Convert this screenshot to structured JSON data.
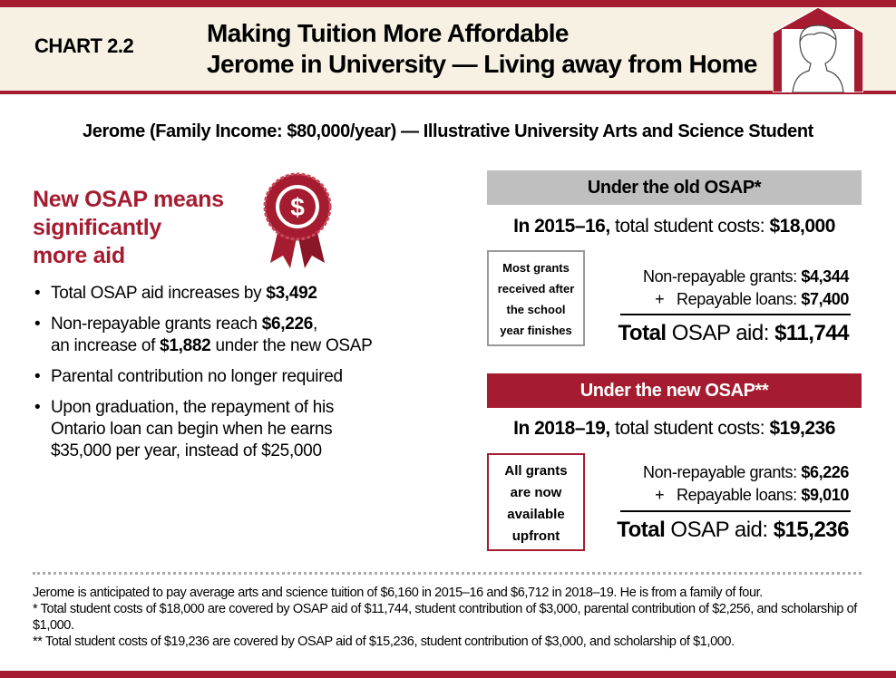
{
  "header": {
    "chart_label": "CHART 2.2",
    "title_line1": "Making Tuition More Affordable",
    "title_line2": "Jerome in University — Living away from Home"
  },
  "subtitle": "Jerome (Family Income: $80,000/year) — Illustrative University Arts and Science Student",
  "lead": {
    "line1": "New OSAP means",
    "line2": "significantly",
    "line3": "more aid"
  },
  "icons": {
    "header": "student-in-house-icon",
    "lead": "dollar-ribbon-icon"
  },
  "colors": {
    "brand": "#a51c30",
    "cream": "#f6f1e3",
    "grey": "#bfbfbf"
  },
  "bullets": [
    {
      "t1": "Total OSAP aid increases by ",
      "b1": "$3,492"
    },
    {
      "t1": "Non-repayable grants reach ",
      "b1": "$6,226",
      "t2": ",",
      "t3": "an increase of ",
      "b2": "$1,882",
      "t4": " under the new OSAP"
    },
    {
      "t1": "Parental contribution no longer required"
    },
    {
      "t1": "Upon graduation, the repayment of his",
      "t2": "Ontario loan can begin when he earns",
      "t3": "$35,000 per year, instead of $25,000"
    }
  ],
  "old": {
    "heading": "Under the old OSAP*",
    "year": "In 2015–16,",
    "cost_label": " total student costs: ",
    "cost": "$18,000",
    "note": [
      "Most grants",
      "received after",
      "the school",
      "year finishes"
    ],
    "grants_label": "Non-repayable grants: ",
    "grants": "$4,344",
    "loans_label": "+   Repayable loans: ",
    "loans": "$7,400",
    "total_bold": "Total",
    "total_label": " OSAP aid: ",
    "total": "$11,744"
  },
  "new": {
    "heading": "Under the new OSAP**",
    "year": "In 2018–19,",
    "cost_label": " total student costs: ",
    "cost": "$19,236",
    "note": [
      "All grants",
      "are now",
      "available",
      "upfront"
    ],
    "grants_label": "Non-repayable grants: ",
    "grants": "$6,226",
    "loans_label": "+   Repayable loans: ",
    "loans": "$9,010",
    "total_bold": "Total",
    "total_label": " OSAP aid: ",
    "total": "$15,236"
  },
  "footnotes": [
    "Jerome is anticipated to pay average arts and science tuition of $6,160 in 2015–16 and $6,712 in 2018–19. He is from a family of four.",
    "* Total student costs of $18,000 are covered by OSAP aid of $11,744, student contribution of $3,000, parental contribution of $2,256, and scholarship of $1,000.",
    "** Total student costs of $19,236 are covered by OSAP aid of $15,236, student contribution of $3,000, and scholarship of $1,000."
  ]
}
